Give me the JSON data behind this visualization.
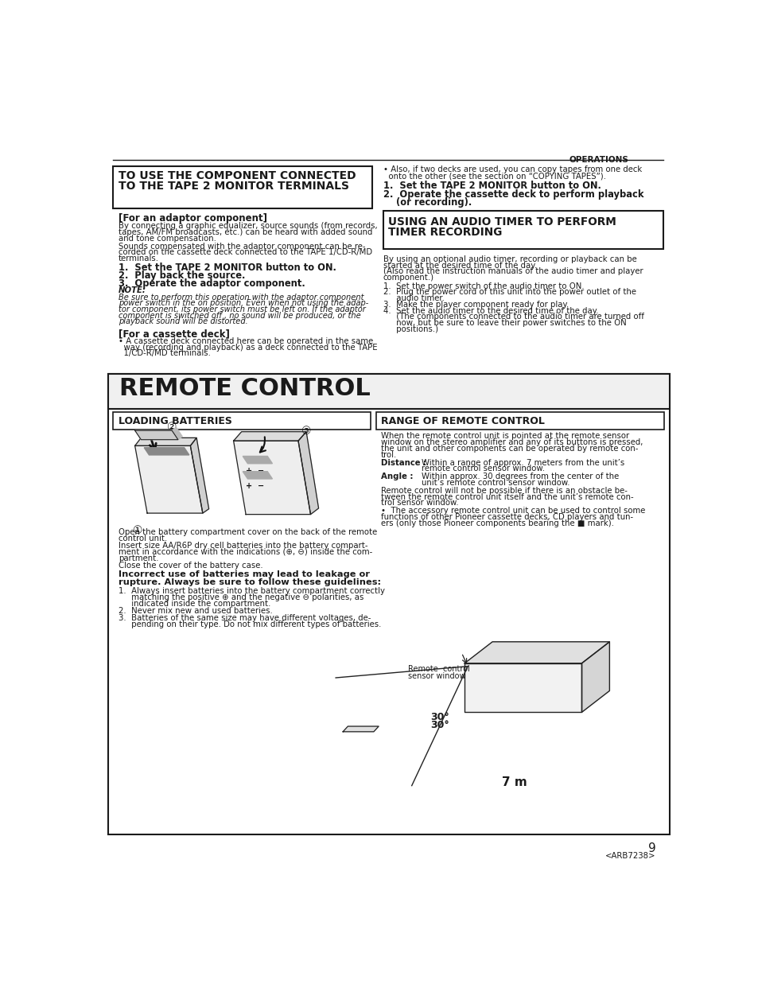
{
  "bg_color": "#ffffff",
  "text_color": "#1a1a1a",
  "page_number": "9",
  "page_code": "<ARB7238>",
  "header_label": "OPERATIONS",
  "lbox_title1": "TO USE THE COMPONENT CONNECTED",
  "lbox_title2": "TO THE TAPE 2 MONITOR TERMINALS",
  "adaptor_header": "[For an adaptor component]",
  "ab1": "By connecting a graphic equalizer, source sounds (from records,",
  "ab2": "tapes, AM/FM broadcasts, etc.) can be heard with added sound",
  "ab3": "and tone compensation.",
  "ab4": "Sounds compensated with the adaptor component can be re-",
  "ab5": "corded on the cassette deck connected to the TAPE 1/CD-R/MD",
  "ab6": "terminals.",
  "ls1": "1.  Set the TAPE 2 MONITOR button to ON.",
  "ls2": "2.  Play back the source.",
  "ls3": "3.  Operate the adaptor component.",
  "note_lbl": "NOTE:",
  "n1": "Be sure to perform this operation with the adaptor component",
  "n2": "power switch in the on position. Even when not using the adap-",
  "n3": "tor component, its power switch must be left on. If the adaptor",
  "n4": "component is switched off , no sound will be produced, or the",
  "n5": "playback sound will be distorted.",
  "cassette_hdr": "[For a cassette deck]",
  "c1": "• A cassette deck connected here can be operated in the same",
  "c2": "  way (recording and playback) as a deck connected to the TAPE",
  "c3": "  1/CD-R/MD terminals.",
  "rb1": "• Also, if two decks are used, you can copy tapes from one deck",
  "rb2": "  onto the other (see the section on “COPYING TAPES”).",
  "rs1": "1.  Set the TAPE 2 MONITOR button to ON.",
  "rs2": "2.  Operate the cassette deck to perform playback",
  "rs2b": "    (or recording).",
  "tbox1": "USING AN AUDIO TIMER TO PERFORM",
  "tbox2": "TIMER RECORDING",
  "ti1": "By using an optional audio timer, recording or playback can be",
  "ti2": "started at the desired time of the day.",
  "ti3": "(Also read the instruction manuals of the audio timer and player",
  "ti4": "component.)",
  "ts1": "1.  Set the power switch of the audio timer to ON.",
  "ts2": "2.  Plug the power cord of this unit into the power outlet of the",
  "ts2b": "     audio timer.",
  "ts3": "3.  Make the player component ready for play.",
  "ts4": "4.  Set the audio timer to the desired time of the day.",
  "ts4b": "     (The components connected to the audio timer are turned off",
  "ts4c": "     now, but be sure to leave their power switches to the ON",
  "ts4d": "     positions.)",
  "remote_title": "REMOTE CONTROL",
  "load_batt": "LOADING BATTERIES",
  "range_ctrl": "RANGE OF REMOTE CONTROL",
  "rng1": "When the remote control unit is pointed at the remote sensor",
  "rng2": "window on the stereo amplifier and any of its buttons is pressed,",
  "rng3": "the unit and other components can be operated by remote con-",
  "rng4": "trol.",
  "dist_lbl": "Distance :",
  "dist1": "Within a range of approx. 7 meters from the unit’s",
  "dist2": "remote control sensor window.",
  "ang_lbl": "Angle :",
  "ang1": "Within approx. 30 degrees from the center of the",
  "ang2": "unit’s remote control sensor window.",
  "ext1": "Remote control will not be possible if there is an obstacle be-",
  "ext2": "tween the remote control unit itself and the unit’s remote con-",
  "ext3": "trol sensor window.",
  "ext4": "•  The accessory remote control unit can be used to control some",
  "ext5": "functions of other Pioneer cassette decks, CD players and tun-",
  "ext6": "ers (only those Pioneer components bearing the ■ mark).",
  "bat1": "Open the battery compartment cover on the back of the remote",
  "bat2": "control unit.",
  "bat3": "Insert size AA/R6P dry cell batteries into the battery compart-",
  "bat4": "ment in accordance with the indications (⊕, ⊖) inside the com-",
  "bat5": "partment.",
  "bat6": "Close the cover of the battery case.",
  "inc1": "Incorrect use of batteries may lead to leakage or",
  "inc2": "rupture. Always be sure to follow these guidelines:",
  "i1": "1.  Always insert batteries into the battery compartment correctly",
  "i2": "     matching the positive ⊕ and the negative ⊖ polarities, as",
  "i3": "     indicated inside the compartment.",
  "i4": "2.  Never mix new and used batteries.",
  "i5": "3.  Batteries of the same size may have different voltages, de-",
  "i6": "     pending on their type. Do not mix different types of batteries.",
  "sensor_lbl1": "Remote  control",
  "sensor_lbl2": "sensor window",
  "dist_val": "7 m",
  "ang_val": "30°"
}
